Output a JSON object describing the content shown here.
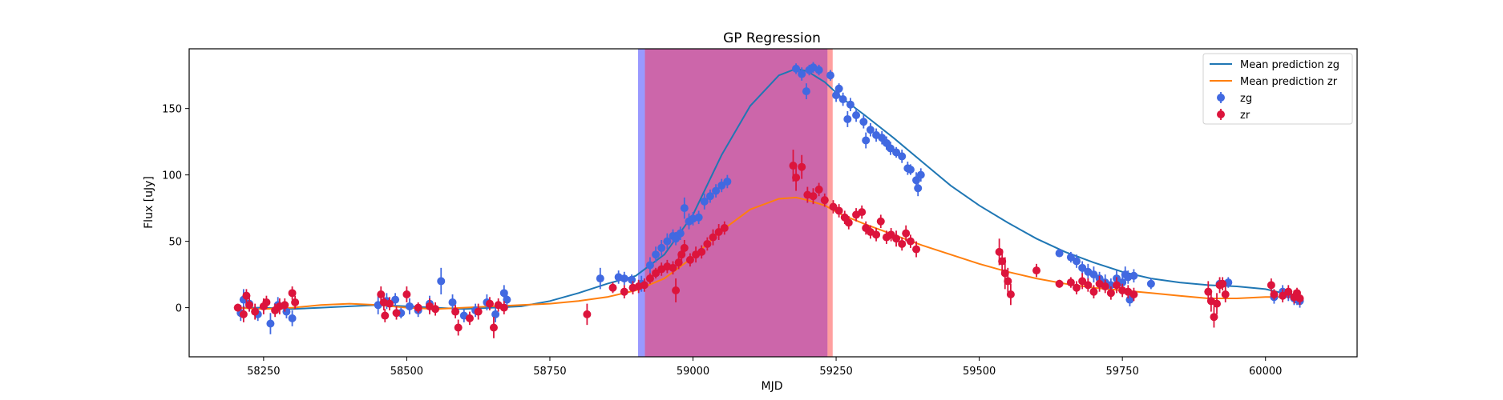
{
  "chart_data": {
    "type": "scatter",
    "title": "GP Regression",
    "xlabel": "MJD",
    "ylabel": "Flux [uJy]",
    "xlim": [
      58120,
      60160
    ],
    "ylim": [
      -37,
      195
    ],
    "xticks": [
      58250,
      58500,
      58750,
      59000,
      59250,
      59500,
      59750,
      60000
    ],
    "yticks": [
      0,
      50,
      100,
      150
    ],
    "grid": false,
    "legend_position": "upper right",
    "shaded_regions": [
      {
        "x0": 58904,
        "x1": 58916,
        "color": "#0000ff",
        "opacity": 0.4
      },
      {
        "x0": 58916,
        "x1": 59235,
        "color": "#cc66aa",
        "opacity": 1.0
      },
      {
        "x0": 59235,
        "x1": 59244,
        "color": "#ff4040",
        "opacity": 0.5
      }
    ],
    "series": [
      {
        "name": "Mean prediction zg",
        "kind": "line",
        "color": "#1f77b4",
        "x": [
          58200,
          58250,
          58300,
          58350,
          58400,
          58450,
          58500,
          58550,
          58600,
          58650,
          58700,
          58750,
          58800,
          58850,
          58900,
          58950,
          59000,
          59050,
          59100,
          59150,
          59180,
          59200,
          59230,
          59260,
          59300,
          59350,
          59400,
          59450,
          59500,
          59550,
          59600,
          59650,
          59700,
          59750,
          59800,
          59850,
          59900,
          59950,
          60000,
          60050,
          60060
        ],
        "y": [
          0,
          0,
          -1,
          0,
          1,
          2,
          1,
          0,
          -1,
          0,
          1,
          5,
          11,
          18,
          24,
          40,
          70,
          115,
          152,
          175,
          180,
          178,
          170,
          158,
          145,
          128,
          110,
          92,
          77,
          64,
          52,
          42,
          34,
          27,
          22,
          19,
          17,
          16,
          14,
          9,
          8
        ]
      },
      {
        "name": "Mean prediction zr",
        "kind": "line",
        "color": "#ff7f0e",
        "x": [
          58200,
          58250,
          58300,
          58350,
          58400,
          58450,
          58500,
          58550,
          58600,
          58650,
          58700,
          58750,
          58800,
          58850,
          58900,
          58950,
          59000,
          59050,
          59100,
          59150,
          59180,
          59200,
          59230,
          59260,
          59300,
          59350,
          59400,
          59450,
          59500,
          59550,
          59600,
          59650,
          59700,
          59750,
          59800,
          59850,
          59900,
          59950,
          60000,
          60050,
          60060
        ],
        "y": [
          0,
          -1,
          0,
          2,
          3,
          2,
          0,
          -1,
          0,
          1,
          2,
          3,
          5,
          8,
          13,
          22,
          38,
          58,
          74,
          82,
          83,
          81,
          77,
          70,
          63,
          55,
          47,
          40,
          33,
          27,
          22,
          18,
          15,
          13,
          11,
          9,
          7,
          7,
          8,
          8,
          8
        ]
      },
      {
        "name": "zg",
        "kind": "errorbar",
        "color": "#4169e1",
        "points": [
          [
            58210,
            -4,
            6
          ],
          [
            58215,
            6,
            8
          ],
          [
            58225,
            3,
            6
          ],
          [
            58240,
            -5,
            5
          ],
          [
            58262,
            -12,
            8
          ],
          [
            58275,
            2,
            6
          ],
          [
            58290,
            -3,
            5
          ],
          [
            58300,
            -8,
            6
          ],
          [
            58450,
            2,
            7
          ],
          [
            58465,
            5,
            6
          ],
          [
            58480,
            6,
            5
          ],
          [
            58490,
            -4,
            4
          ],
          [
            58505,
            1,
            6
          ],
          [
            58520,
            -2,
            5
          ],
          [
            58540,
            3,
            6
          ],
          [
            58560,
            20,
            10
          ],
          [
            58580,
            4,
            6
          ],
          [
            58600,
            -6,
            5
          ],
          [
            58620,
            -2,
            5
          ],
          [
            58640,
            4,
            6
          ],
          [
            58655,
            -5,
            6
          ],
          [
            58670,
            11,
            6
          ],
          [
            58675,
            6,
            5
          ],
          [
            58838,
            22,
            8
          ],
          [
            58870,
            23,
            5
          ],
          [
            58880,
            22,
            5
          ],
          [
            58893,
            21,
            4
          ],
          [
            58910,
            18,
            6
          ],
          [
            58925,
            32,
            6
          ],
          [
            58935,
            40,
            6
          ],
          [
            58945,
            45,
            6
          ],
          [
            58955,
            50,
            6
          ],
          [
            58965,
            54,
            5
          ],
          [
            58970,
            52,
            5
          ],
          [
            58978,
            56,
            5
          ],
          [
            58985,
            75,
            8
          ],
          [
            58993,
            65,
            6
          ],
          [
            59000,
            67,
            5
          ],
          [
            59010,
            68,
            5
          ],
          [
            59020,
            80,
            6
          ],
          [
            59030,
            84,
            5
          ],
          [
            59040,
            88,
            5
          ],
          [
            59050,
            92,
            5
          ],
          [
            59060,
            95,
            5
          ],
          [
            59180,
            180,
            4
          ],
          [
            59190,
            176,
            5
          ],
          [
            59198,
            163,
            6
          ],
          [
            59203,
            179,
            4
          ],
          [
            59210,
            181,
            4
          ],
          [
            59220,
            179,
            4
          ],
          [
            59240,
            175,
            4
          ],
          [
            59250,
            160,
            5
          ],
          [
            59255,
            165,
            4
          ],
          [
            59262,
            157,
            5
          ],
          [
            59270,
            142,
            6
          ],
          [
            59275,
            153,
            5
          ],
          [
            59285,
            145,
            5
          ],
          [
            59298,
            140,
            5
          ],
          [
            59302,
            126,
            6
          ],
          [
            59310,
            134,
            5
          ],
          [
            59320,
            130,
            5
          ],
          [
            59330,
            128,
            5
          ],
          [
            59338,
            124,
            5
          ],
          [
            59345,
            120,
            5
          ],
          [
            59355,
            117,
            4
          ],
          [
            59365,
            114,
            5
          ],
          [
            59375,
            105,
            5
          ],
          [
            59380,
            104,
            4
          ],
          [
            59390,
            96,
            6
          ],
          [
            59393,
            90,
            6
          ],
          [
            59398,
            100,
            5
          ],
          [
            59640,
            41,
            3
          ],
          [
            59660,
            38,
            4
          ],
          [
            59670,
            35,
            5
          ],
          [
            59680,
            30,
            5
          ],
          [
            59690,
            27,
            6
          ],
          [
            59700,
            25,
            6
          ],
          [
            59710,
            22,
            5
          ],
          [
            59720,
            19,
            6
          ],
          [
            59730,
            17,
            5
          ],
          [
            59740,
            22,
            6
          ],
          [
            59750,
            19,
            5
          ],
          [
            59755,
            25,
            6
          ],
          [
            59760,
            23,
            5
          ],
          [
            59763,
            6,
            5
          ],
          [
            59770,
            24,
            5
          ],
          [
            59800,
            18,
            4
          ],
          [
            59920,
            18,
            4
          ],
          [
            59935,
            19,
            4
          ],
          [
            60015,
            8,
            5
          ],
          [
            60030,
            12,
            5
          ],
          [
            60040,
            10,
            5
          ],
          [
            60050,
            7,
            5
          ],
          [
            60055,
            6,
            4
          ],
          [
            60060,
            5,
            5
          ]
        ]
      },
      {
        "name": "zr",
        "kind": "errorbar",
        "color": "#dc143c",
        "points": [
          [
            58205,
            0,
            3
          ],
          [
            58215,
            -5,
            6
          ],
          [
            58220,
            9,
            5
          ],
          [
            58225,
            2,
            5
          ],
          [
            58235,
            -3,
            6
          ],
          [
            58250,
            1,
            6
          ],
          [
            58255,
            4,
            5
          ],
          [
            58270,
            -2,
            5
          ],
          [
            58278,
            1,
            6
          ],
          [
            58287,
            2,
            5
          ],
          [
            58300,
            11,
            5
          ],
          [
            58305,
            4,
            5
          ],
          [
            58455,
            10,
            6
          ],
          [
            58460,
            4,
            6
          ],
          [
            58462,
            -6,
            5
          ],
          [
            58470,
            3,
            5
          ],
          [
            58482,
            -4,
            5
          ],
          [
            58500,
            10,
            6
          ],
          [
            58520,
            0,
            4
          ],
          [
            58540,
            1,
            6
          ],
          [
            58550,
            -1,
            5
          ],
          [
            58585,
            -3,
            5
          ],
          [
            58590,
            -15,
            6
          ],
          [
            58610,
            -8,
            5
          ],
          [
            58625,
            -3,
            6
          ],
          [
            58645,
            3,
            5
          ],
          [
            58652,
            -15,
            8
          ],
          [
            58660,
            2,
            5
          ],
          [
            58670,
            0,
            5
          ],
          [
            58815,
            -5,
            8
          ],
          [
            58860,
            15,
            4
          ],
          [
            58880,
            12,
            5
          ],
          [
            58895,
            15,
            5
          ],
          [
            58905,
            16,
            5
          ],
          [
            58915,
            17,
            5
          ],
          [
            58925,
            22,
            4
          ],
          [
            58935,
            26,
            4
          ],
          [
            58945,
            29,
            5
          ],
          [
            58955,
            31,
            5
          ],
          [
            58965,
            30,
            5
          ],
          [
            58970,
            13,
            9
          ],
          [
            58975,
            34,
            5
          ],
          [
            58980,
            40,
            6
          ],
          [
            58985,
            45,
            6
          ],
          [
            58995,
            36,
            5
          ],
          [
            59005,
            40,
            6
          ],
          [
            59015,
            42,
            5
          ],
          [
            59025,
            48,
            5
          ],
          [
            59035,
            53,
            6
          ],
          [
            59045,
            57,
            6
          ],
          [
            59055,
            60,
            5
          ],
          [
            59175,
            107,
            12
          ],
          [
            59180,
            98,
            10
          ],
          [
            59190,
            106,
            9
          ],
          [
            59200,
            85,
            6
          ],
          [
            59210,
            84,
            6
          ],
          [
            59220,
            89,
            5
          ],
          [
            59230,
            81,
            5
          ],
          [
            59245,
            76,
            5
          ],
          [
            59255,
            73,
            5
          ],
          [
            59265,
            68,
            5
          ],
          [
            59272,
            64,
            5
          ],
          [
            59285,
            70,
            5
          ],
          [
            59295,
            72,
            5
          ],
          [
            59302,
            60,
            5
          ],
          [
            59310,
            57,
            5
          ],
          [
            59320,
            55,
            5
          ],
          [
            59328,
            65,
            5
          ],
          [
            59338,
            53,
            5
          ],
          [
            59346,
            55,
            5
          ],
          [
            59355,
            52,
            6
          ],
          [
            59365,
            48,
            5
          ],
          [
            59372,
            56,
            6
          ],
          [
            59380,
            50,
            5
          ],
          [
            59390,
            44,
            6
          ],
          [
            59535,
            42,
            10
          ],
          [
            59540,
            35,
            9
          ],
          [
            59545,
            26,
            12
          ],
          [
            59550,
            20,
            10
          ],
          [
            59555,
            10,
            8
          ],
          [
            59600,
            28,
            5
          ],
          [
            59640,
            18,
            3
          ],
          [
            59660,
            19,
            4
          ],
          [
            59670,
            15,
            5
          ],
          [
            59680,
            20,
            6
          ],
          [
            59690,
            17,
            5
          ],
          [
            59700,
            12,
            5
          ],
          [
            59710,
            18,
            6
          ],
          [
            59720,
            16,
            5
          ],
          [
            59730,
            11,
            5
          ],
          [
            59740,
            17,
            6
          ],
          [
            59750,
            13,
            5
          ],
          [
            59760,
            12,
            5
          ],
          [
            59770,
            10,
            5
          ],
          [
            59900,
            12,
            8
          ],
          [
            59905,
            5,
            8
          ],
          [
            59910,
            -7,
            8
          ],
          [
            59915,
            3,
            8
          ],
          [
            59920,
            17,
            6
          ],
          [
            59925,
            18,
            5
          ],
          [
            59930,
            10,
            6
          ],
          [
            60010,
            17,
            5
          ],
          [
            60015,
            10,
            4
          ],
          [
            60030,
            9,
            5
          ],
          [
            60040,
            12,
            5
          ],
          [
            60050,
            8,
            5
          ],
          [
            60055,
            11,
            4
          ],
          [
            60060,
            7,
            5
          ]
        ]
      }
    ]
  }
}
